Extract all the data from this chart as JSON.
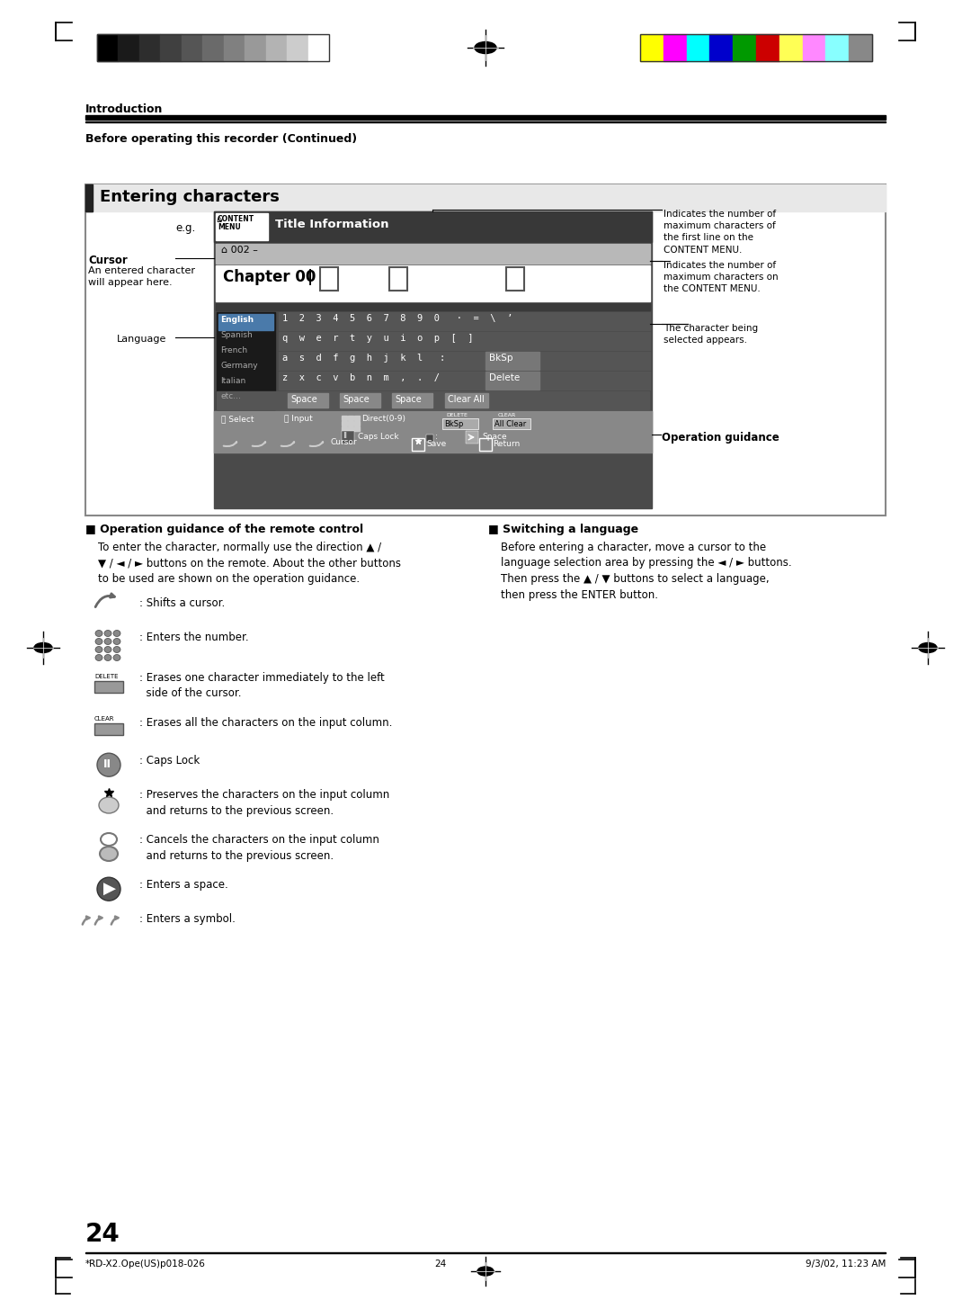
{
  "page_bg": "#ffffff",
  "page_num": "24",
  "footer_left": "*RD-X2.Ope(US)p018-026",
  "footer_center": "24",
  "footer_right": "9/3/02, 11:23 AM",
  "header_section": "Introduction",
  "header_sub": "Before operating this recorder (Continued)",
  "section_title": "Entering characters",
  "note1": "Indicates the number of\nmaximum characters of\nthe first line on the\nCONTENT MENU.",
  "note2": "Indicates the number of\nmaximum characters on\nthe CONTENT MENU.",
  "note3": "The character being\nselected appears.",
  "label_cursor": "Cursor",
  "label_cursor_sub": "An entered character\nwill appear here.",
  "label_language": "Language",
  "label_op_guidance": "Operation guidance",
  "diagram_eg": "e.g.",
  "lang_list": [
    "English",
    "Spanish",
    "French",
    "Germany",
    "Italian",
    "etc..."
  ],
  "op_guidance_title": "Operation guidance of the remote control",
  "op_guidance_body": "To enter the character, normally use the direction ▲ /\n▼ / ◄ / ► buttons on the remote. About the other buttons\nto be used are shown on the operation guidance.",
  "switch_lang_title": "Switching a language",
  "switch_lang_body": "Before entering a character, move a cursor to the\nlanguage selection area by pressing the ◄ / ► buttons.\nThen press the ▲ / ▼ buttons to select a language,\nthen press the ENTER button.",
  "icon_texts": [
    ": Shifts a cursor.",
    ": Enters the number.",
    ": Erases one character immediately to the left\n  side of the cursor.",
    ": Erases all the characters on the input column.",
    ": Caps Lock",
    ": Preserves the characters on the input column\n  and returns to the previous screen.",
    ": Cancels the characters on the input column\n  and returns to the previous screen.",
    ": Enters a space.",
    ": Enters a symbol."
  ],
  "icon_heights": [
    38,
    45,
    50,
    42,
    38,
    50,
    50,
    38,
    38
  ],
  "color_bar_left": [
    "#000000",
    "#1a1a1a",
    "#2d2d2d",
    "#404040",
    "#555555",
    "#6a6a6a",
    "#808080",
    "#999999",
    "#b3b3b3",
    "#cccccc",
    "#ffffff"
  ],
  "color_bar_right": [
    "#ffff00",
    "#ff00ff",
    "#00ffff",
    "#0000cc",
    "#009900",
    "#cc0000",
    "#ffff55",
    "#ff88ff",
    "#88ffff",
    "#888888"
  ]
}
